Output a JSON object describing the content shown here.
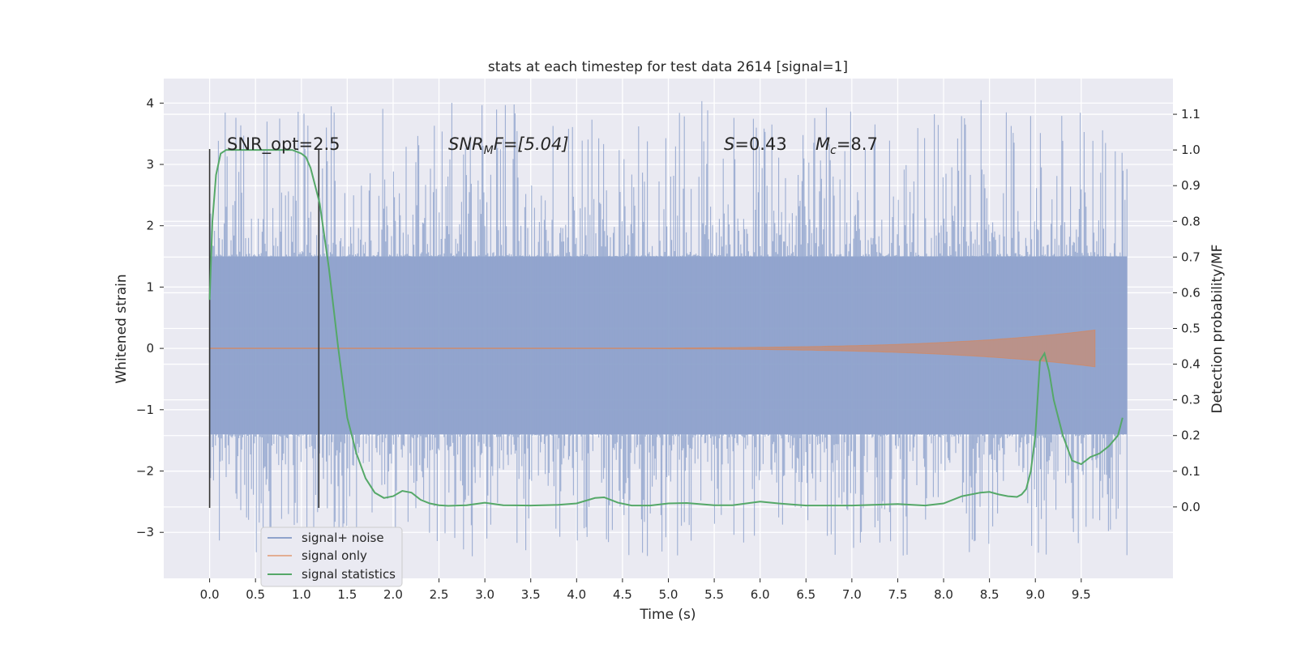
{
  "chart_data": {
    "type": "line",
    "title": "stats at each timestep for test data 2614 [signal=1]",
    "xlabel": "Time (s)",
    "ylabel": "Whitened strain",
    "y2label": "Detection probability/MF",
    "xlim": [
      -0.5,
      10.5
    ],
    "ylim": [
      -3.75,
      4.4
    ],
    "y2lim": [
      -0.2,
      1.2
    ],
    "x_ticks": [
      0.0,
      0.5,
      1.0,
      1.5,
      2.0,
      2.5,
      3.0,
      3.5,
      4.0,
      4.5,
      5.0,
      5.5,
      6.0,
      6.5,
      7.0,
      7.5,
      8.0,
      8.5,
      9.0,
      9.5
    ],
    "x_tick_labels": [
      "0.0",
      "0.5",
      "1.0",
      "1.5",
      "2.0",
      "2.5",
      "3.0",
      "3.5",
      "4.0",
      "4.5",
      "5.0",
      "5.5",
      "6.0",
      "6.5",
      "7.0",
      "7.5",
      "8.0",
      "8.5",
      "9.0",
      "9.5"
    ],
    "y_ticks": [
      -3,
      -2,
      -1,
      0,
      1,
      2,
      3,
      4
    ],
    "y_tick_labels": [
      "−3",
      "−2",
      "−1",
      "0",
      "1",
      "2",
      "3",
      "4"
    ],
    "y2_ticks": [
      0.0,
      0.1,
      0.2,
      0.3,
      0.4,
      0.5,
      0.6,
      0.7,
      0.8,
      0.9,
      1.0,
      1.1
    ],
    "y2_tick_labels": [
      "0.0",
      "0.1",
      "0.2",
      "0.3",
      "0.4",
      "0.5",
      "0.6",
      "0.7",
      "0.8",
      "0.9",
      "1.0",
      "1.1"
    ],
    "grid": true,
    "legend_position": "lower-left",
    "colors": {
      "noise": "#8fa3cc",
      "signal": "#dd8452",
      "stat": "#55a868",
      "vline": "#333333",
      "bg": "#eaeaf2",
      "grid": "#ffffff"
    },
    "series": [
      {
        "name": "signal+ noise",
        "axis": "left",
        "x_range": [
          0.0,
          10.0
        ],
        "core_band": [
          -1.4,
          1.5
        ],
        "min": -3.4,
        "max": 4.05
      },
      {
        "name": "signal only",
        "axis": "left",
        "x_range": [
          0.0,
          9.65
        ],
        "amplitude_max": 0.3
      },
      {
        "name": "signal statistics",
        "axis": "right",
        "x": [
          0.0,
          0.03,
          0.07,
          0.12,
          0.18,
          0.3,
          0.5,
          0.7,
          0.9,
          1.0,
          1.05,
          1.1,
          1.15,
          1.2,
          1.3,
          1.4,
          1.5,
          1.6,
          1.7,
          1.8,
          1.9,
          2.0,
          2.1,
          2.2,
          2.3,
          2.4,
          2.5,
          2.6,
          2.8,
          3.0,
          3.2,
          3.5,
          3.8,
          4.0,
          4.2,
          4.3,
          4.45,
          4.6,
          4.8,
          5.0,
          5.2,
          5.5,
          5.7,
          6.0,
          6.2,
          6.5,
          7.0,
          7.5,
          7.8,
          8.0,
          8.2,
          8.4,
          8.5,
          8.6,
          8.7,
          8.8,
          8.85,
          8.9,
          8.95,
          9.0,
          9.05,
          9.1,
          9.15,
          9.2,
          9.3,
          9.4,
          9.5,
          9.6,
          9.7,
          9.8,
          9.9,
          9.95
        ],
        "values": [
          0.58,
          0.8,
          0.93,
          0.99,
          1.0,
          1.0,
          1.0,
          1.0,
          1.0,
          0.99,
          0.98,
          0.95,
          0.9,
          0.85,
          0.67,
          0.45,
          0.25,
          0.15,
          0.08,
          0.04,
          0.025,
          0.03,
          0.045,
          0.04,
          0.02,
          0.01,
          0.005,
          0.003,
          0.005,
          0.012,
          0.005,
          0.004,
          0.006,
          0.01,
          0.025,
          0.027,
          0.012,
          0.004,
          0.004,
          0.01,
          0.011,
          0.005,
          0.005,
          0.015,
          0.01,
          0.004,
          0.004,
          0.008,
          0.004,
          0.01,
          0.03,
          0.04,
          0.042,
          0.035,
          0.03,
          0.028,
          0.035,
          0.05,
          0.1,
          0.2,
          0.41,
          0.43,
          0.38,
          0.3,
          0.2,
          0.13,
          0.12,
          0.14,
          0.15,
          0.17,
          0.2,
          0.25
        ]
      }
    ],
    "vlines": [
      {
        "x": 0.0,
        "y_top": 3.25,
        "y_bottom": -2.6
      },
      {
        "x": 1.19,
        "y_top": 3.25,
        "y_bottom": -2.6
      }
    ],
    "annotations": [
      {
        "id": "snr-opt",
        "text": "SNR_opt=2.5"
      },
      {
        "id": "snr-mf",
        "prefix": "SNR",
        "sub": "M",
        "suffix": "F=[5.04]"
      },
      {
        "id": "s-value",
        "prefix": "S",
        "suffix": "=0.43"
      },
      {
        "id": "mc-value",
        "prefix": "M",
        "sub": "c",
        "suffix": "=8.7"
      }
    ]
  }
}
